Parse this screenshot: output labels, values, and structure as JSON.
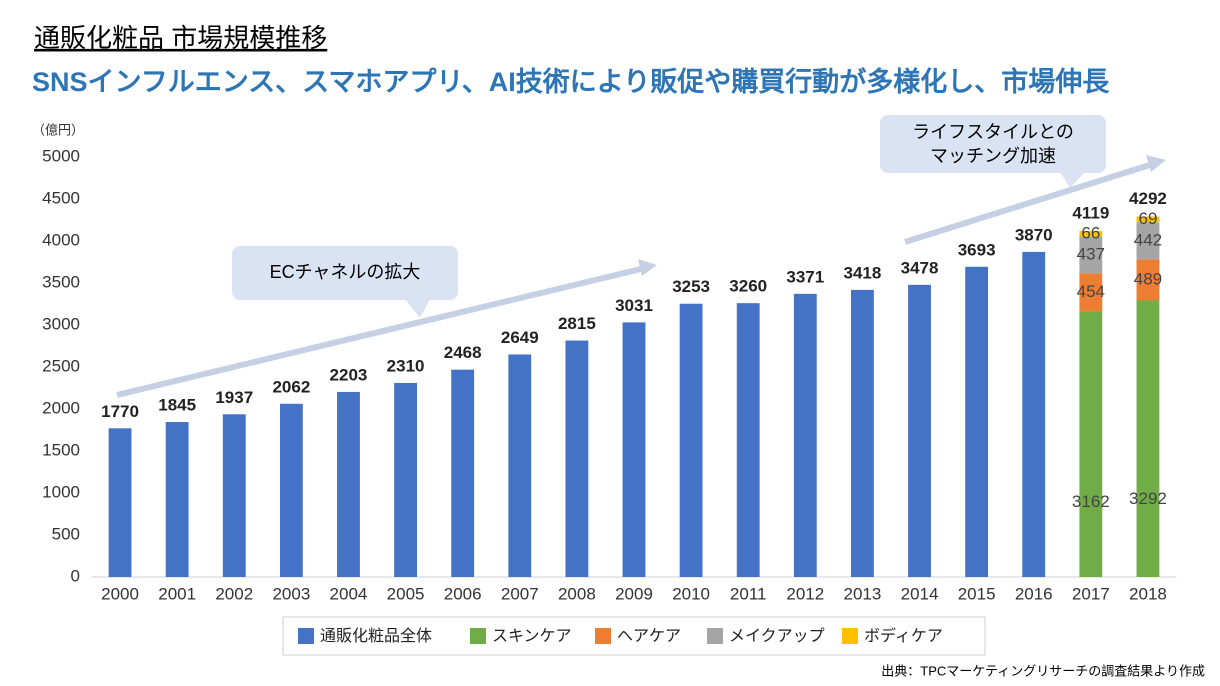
{
  "chart_data": {
    "type": "stacked_bar",
    "title": "通販化粧品 市場規模推移",
    "subtitle": "SNSインフルエンス、スマホアプリ、AI技術により販促や購買行動が多様化し、市場伸長",
    "y_unit": "（億円）",
    "categories": [
      "2000",
      "2001",
      "2002",
      "2003",
      "2004",
      "2005",
      "2006",
      "2007",
      "2008",
      "2009",
      "2010",
      "2011",
      "2012",
      "2013",
      "2014",
      "2015",
      "2016",
      "2017",
      "2018"
    ],
    "series": [
      {
        "name": "通販化粧品全体",
        "color": "#4472c4",
        "values": [
          1770,
          1845,
          1937,
          2062,
          2203,
          2310,
          2468,
          2649,
          2815,
          3031,
          3253,
          3260,
          3371,
          3418,
          3478,
          3693,
          3870,
          null,
          null
        ]
      },
      {
        "name": "スキンケア",
        "color": "#70ad47",
        "values": [
          null,
          null,
          null,
          null,
          null,
          null,
          null,
          null,
          null,
          null,
          null,
          null,
          null,
          null,
          null,
          null,
          null,
          3162,
          3292
        ]
      },
      {
        "name": "ヘアケア",
        "color": "#ed7d31",
        "values": [
          null,
          null,
          null,
          null,
          null,
          null,
          null,
          null,
          null,
          null,
          null,
          null,
          null,
          null,
          null,
          null,
          null,
          454,
          489
        ]
      },
      {
        "name": "メイクアップ",
        "color": "#a5a5a5",
        "values": [
          null,
          null,
          null,
          null,
          null,
          null,
          null,
          null,
          null,
          null,
          null,
          null,
          null,
          null,
          null,
          null,
          null,
          437,
          442
        ]
      },
      {
        "name": "ボディケア",
        "color": "#ffc000",
        "values": [
          null,
          null,
          null,
          null,
          null,
          null,
          null,
          null,
          null,
          null,
          null,
          null,
          null,
          null,
          null,
          null,
          null,
          66,
          69
        ]
      }
    ],
    "stack_totals": [
      null,
      null,
      null,
      null,
      null,
      null,
      null,
      null,
      null,
      null,
      null,
      null,
      null,
      null,
      null,
      null,
      null,
      4119,
      4292
    ],
    "ylim": [
      0,
      5000
    ],
    "yticks": [
      0,
      500,
      1000,
      1500,
      2000,
      2500,
      3000,
      3500,
      4000,
      4500,
      5000
    ],
    "grid": false,
    "legend": "bottom",
    "annotations": [
      [
        "ECチャネルの拡大"
      ],
      [
        "ライフスタイルとの",
        "マッチング加速"
      ]
    ],
    "source": "出典：TPCマーケティングリサーチの調査結果より作成"
  }
}
